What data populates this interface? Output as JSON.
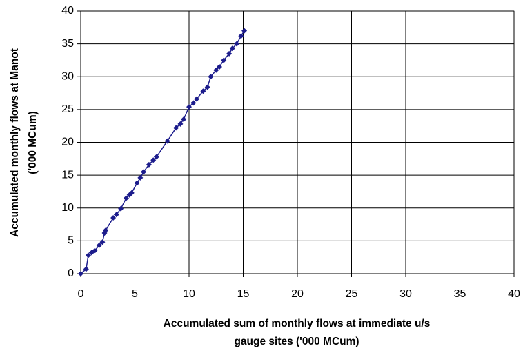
{
  "chart_data": {
    "type": "scatter",
    "xlabel": [
      "Accumulated sum of monthly flows at immediate u/s",
      "gauge sites  ('000 MCum)"
    ],
    "ylabel": [
      "Accumulated monthly flows at Manot",
      "('000 MCum)"
    ],
    "x": [
      0,
      0.5,
      0.7,
      1,
      1.3,
      1.7,
      2,
      2.2,
      2.3,
      3,
      3.3,
      3.7,
      4.2,
      4.5,
      4.7,
      5.2,
      5.5,
      5.8,
      6.3,
      6.7,
      7,
      8,
      8.8,
      9.2,
      9.5,
      10,
      10.4,
      10.7,
      11.3,
      11.7,
      12,
      12.5,
      12.8,
      13.2,
      13.7,
      14,
      14.4,
      14.8,
      15.1
    ],
    "values": [
      0,
      0.7,
      2.8,
      3.2,
      3.5,
      4.3,
      4.8,
      6.2,
      6.6,
      8.5,
      9,
      9.9,
      11.5,
      12,
      12.3,
      13.8,
      14.6,
      15.5,
      16.6,
      17.3,
      17.8,
      20.2,
      22.2,
      22.8,
      23.5,
      25.4,
      26,
      26.6,
      27.8,
      28.4,
      30,
      31,
      31.5,
      32.5,
      33.5,
      34.3,
      35,
      36.2,
      37
    ],
    "color": "#1c1c8c",
    "xlim": [
      0,
      40
    ],
    "xticks": [
      0,
      5,
      10,
      15,
      20,
      25,
      30,
      35,
      40
    ],
    "ylim": [
      0,
      40
    ],
    "yticks": [
      0,
      5,
      10,
      15,
      20,
      25,
      30,
      35,
      40
    ],
    "grid": true
  }
}
